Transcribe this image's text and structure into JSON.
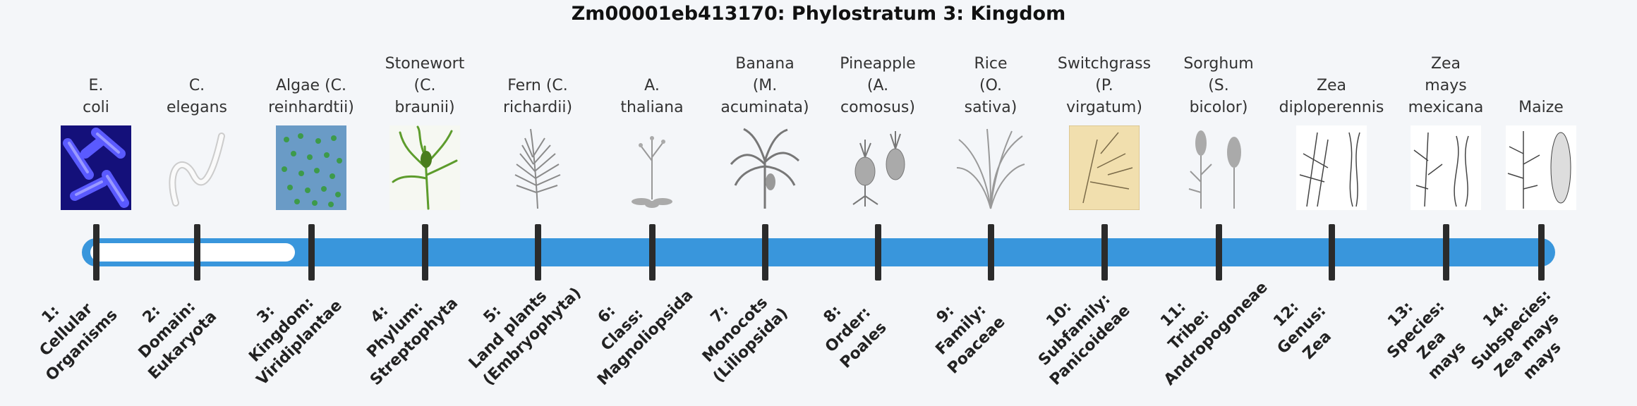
{
  "title": "Zm00001eb413170: Phylostratum 3: Kingdom",
  "strata": [
    {
      "organism": [
        "E.",
        "coli"
      ],
      "rank": [
        "1:",
        "Cellular",
        "Organisms"
      ],
      "icon": "e-coli-image"
    },
    {
      "organism": [
        "C.",
        "elegans"
      ],
      "rank": [
        "2:",
        "Domain:",
        "Eukaryota"
      ],
      "icon": "c-elegans-image"
    },
    {
      "organism": [
        "Algae (C.",
        "reinhardtii)"
      ],
      "rank": [
        "3:",
        "Kingdom:",
        "Viridiplantae"
      ],
      "icon": "algae-image"
    },
    {
      "organism": [
        "Stonewort",
        "(C.",
        "braunii)"
      ],
      "rank": [
        "4:",
        "Phylum:",
        "Streptophyta"
      ],
      "icon": "stonewort-image"
    },
    {
      "organism": [
        "Fern (C.",
        "richardii)"
      ],
      "rank": [
        "5:",
        "Land plants",
        "(Embryophyta)"
      ],
      "icon": "fern-image"
    },
    {
      "organism": [
        "A.",
        "thaliana"
      ],
      "rank": [
        "6:",
        "Class:",
        "Magnoliopsida"
      ],
      "icon": "arabidopsis-image"
    },
    {
      "organism": [
        "Banana",
        "(M.",
        "acuminata)"
      ],
      "rank": [
        "7:",
        "Monocots",
        "(Liliopsida)"
      ],
      "icon": "banana-image"
    },
    {
      "organism": [
        "Pineapple",
        "(A.",
        "comosus)"
      ],
      "rank": [
        "8:",
        "Order:",
        "Poales"
      ],
      "icon": "pineapple-image"
    },
    {
      "organism": [
        "Rice",
        "(O.",
        "sativa)"
      ],
      "rank": [
        "9:",
        "Family:",
        "Poaceae"
      ],
      "icon": "rice-image"
    },
    {
      "organism": [
        "Switchgrass",
        "(P.",
        "virgatum)"
      ],
      "rank": [
        "10:",
        "Subfamily:",
        "Panicoideae"
      ],
      "icon": "switchgrass-image"
    },
    {
      "organism": [
        "Sorghum",
        "(S.",
        "bicolor)"
      ],
      "rank": [
        "11:",
        "Tribe:",
        "Andropogoneae"
      ],
      "icon": "sorghum-image"
    },
    {
      "organism": [
        "Zea",
        "diploperennis"
      ],
      "rank": [
        "12:",
        "Genus:",
        "Zea"
      ],
      "icon": "zea-diploperennis-image"
    },
    {
      "organism": [
        "Zea",
        "mays",
        "mexicana"
      ],
      "rank": [
        "13:",
        "Species:",
        "Zea",
        "mays"
      ],
      "icon": "zea-mexicana-image"
    },
    {
      "organism": [
        "Maize"
      ],
      "rank": [
        "14:",
        "Subspecies:",
        "Zea mays",
        "mays"
      ],
      "icon": "maize-image"
    }
  ],
  "highlighted_stratum": 3,
  "colors": {
    "track": "#3996dc",
    "track_unfilled": "#ffffff",
    "tick": "#2b2b2b"
  }
}
